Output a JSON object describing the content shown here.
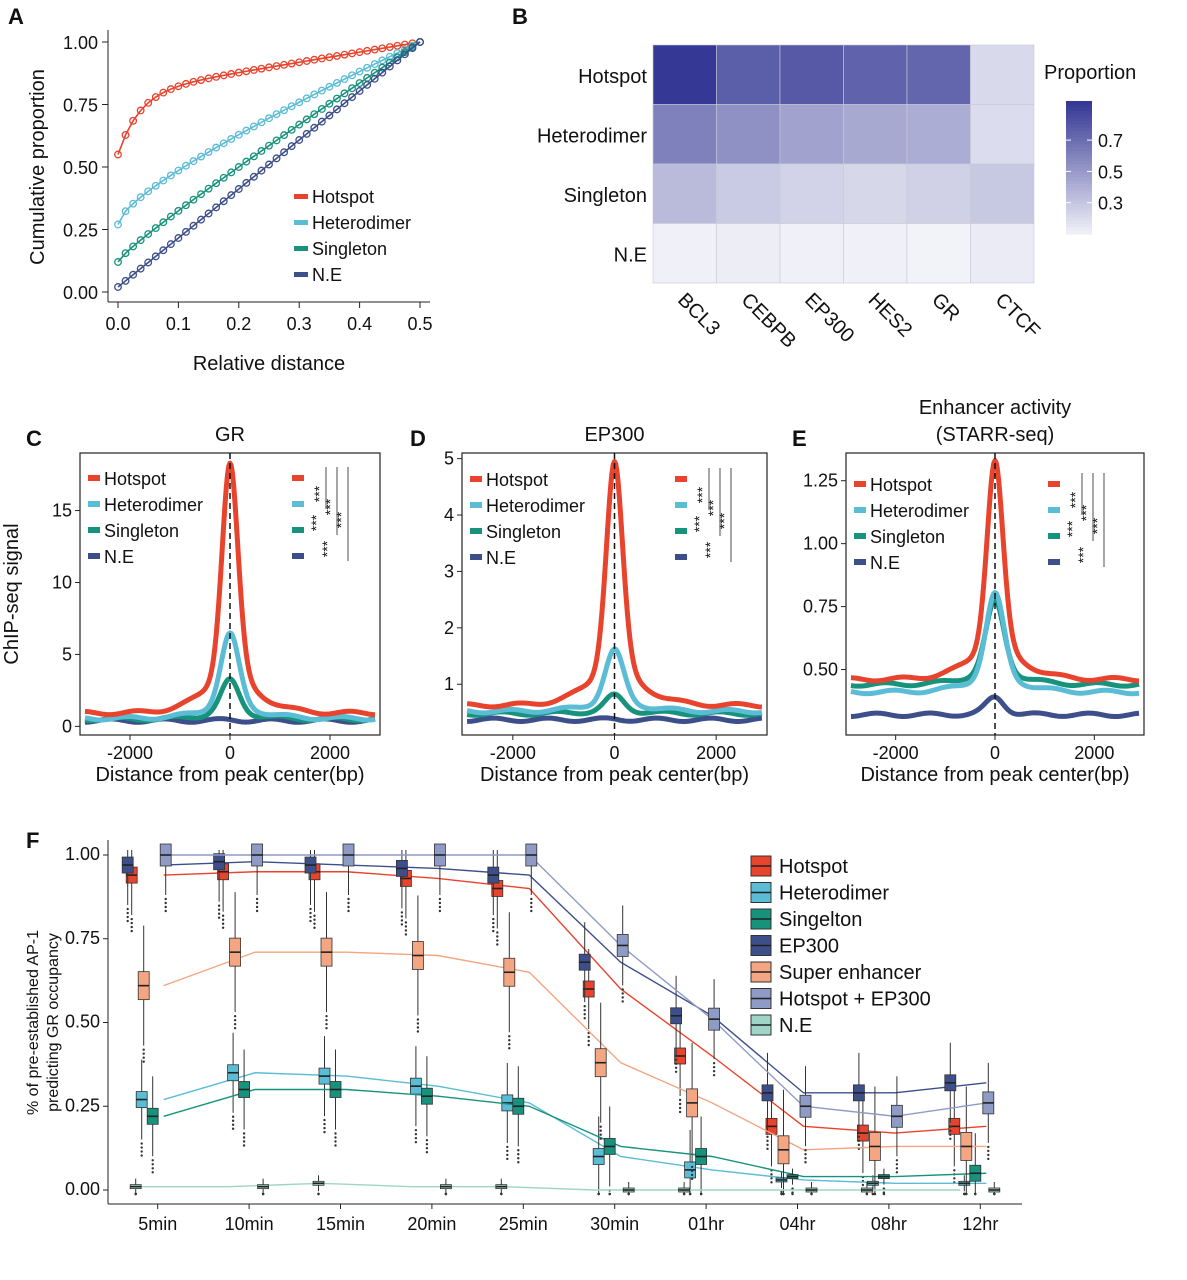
{
  "panel_letters": [
    "A",
    "B",
    "C",
    "D",
    "E",
    "F"
  ],
  "chart_data": [
    {
      "id": "A",
      "type": "line",
      "xlabel": "Relative distance",
      "ylabel": "Cumulative proportion",
      "xlim": [
        0,
        0.5
      ],
      "ylim": [
        0,
        1
      ],
      "xticks": [
        "0.0",
        "0.1",
        "0.2",
        "0.3",
        "0.4",
        "0.5"
      ],
      "yticks": [
        "0.00",
        "0.25",
        "0.50",
        "0.75",
        "1.00"
      ],
      "legend_position": "bottom-right",
      "series": [
        {
          "name": "Hotspot",
          "color": "#e8432d",
          "start": 0.55,
          "shape": "concave"
        },
        {
          "name": "Heterodimer",
          "color": "#5bbcd6",
          "start": 0.27,
          "shape": "mild"
        },
        {
          "name": "Singleton",
          "color": "#17927c",
          "start": 0.12,
          "shape": "near-linear"
        },
        {
          "name": "N.E",
          "color": "#3c4f8a",
          "start": 0.02,
          "shape": "linear"
        }
      ]
    },
    {
      "id": "B",
      "type": "heatmap",
      "rows": [
        "Hotspot",
        "Heterodimer",
        "Singleton",
        "N.E"
      ],
      "cols": [
        "BCL3",
        "CEBPB",
        "EP300",
        "HES2",
        "GR",
        "CTCF"
      ],
      "values": [
        [
          0.95,
          0.78,
          0.8,
          0.76,
          0.74,
          0.22
        ],
        [
          0.62,
          0.55,
          0.47,
          0.44,
          0.42,
          0.21
        ],
        [
          0.36,
          0.29,
          0.25,
          0.23,
          0.26,
          0.3
        ],
        [
          0.12,
          0.13,
          0.12,
          0.12,
          0.11,
          0.14
        ]
      ],
      "legend_title": "Proportion",
      "legend_ticks": [
        "0.7",
        "0.5",
        "0.3"
      ],
      "legend_tick_values": [
        0.7,
        0.5,
        0.3
      ],
      "color_range": [
        0.1,
        0.95
      ],
      "color_low": "#f4f4fa",
      "color_high": "#353894"
    },
    {
      "id": "C",
      "type": "line",
      "title": "GR",
      "xlabel": "Distance from peak center(bp)",
      "ylabel": "ChIP-seq signal",
      "xlim": [
        -3000,
        3000
      ],
      "ylim": [
        -0.6,
        19
      ],
      "xticks": [
        "-2000",
        "0",
        "2000"
      ],
      "yticks": [
        "0",
        "5",
        "10",
        "15"
      ],
      "ytick_values": [
        0,
        5,
        10,
        15
      ],
      "legend_position": "top-left",
      "significance": "***",
      "series": [
        {
          "name": "Hotspot",
          "color": "#e8432d",
          "baseline": 0.9,
          "peak": 18.3
        },
        {
          "name": "Heterodimer",
          "color": "#5bbcd6",
          "baseline": 0.55,
          "peak": 6.4
        },
        {
          "name": "Singleton",
          "color": "#17927c",
          "baseline": 0.5,
          "peak": 3.2
        },
        {
          "name": "N.E",
          "color": "#3c4f8a",
          "baseline": 0.4,
          "peak": 0.45
        }
      ]
    },
    {
      "id": "D",
      "type": "line",
      "title": "EP300",
      "xlabel": "Distance from peak center(bp)",
      "xlim": [
        -3000,
        3000
      ],
      "ylim": [
        0.1,
        5.1
      ],
      "xticks": [
        "-2000",
        "0",
        "2000"
      ],
      "yticks": [
        "1",
        "2",
        "3",
        "4",
        "5"
      ],
      "ytick_values": [
        1,
        2,
        3,
        4,
        5
      ],
      "legend_position": "top-left",
      "significance": "***",
      "series": [
        {
          "name": "Hotspot",
          "color": "#e8432d",
          "baseline": 0.62,
          "peak": 4.95
        },
        {
          "name": "Heterodimer",
          "color": "#5bbcd6",
          "baseline": 0.52,
          "peak": 1.6
        },
        {
          "name": "Singleton",
          "color": "#17927c",
          "baseline": 0.48,
          "peak": 0.8
        },
        {
          "name": "N.E",
          "color": "#3c4f8a",
          "baseline": 0.37,
          "peak": 0.38
        }
      ]
    },
    {
      "id": "E",
      "type": "line",
      "title": "Enhancer activity\n(STARR-seq)",
      "xlabel": "Distance from peak center(bp)",
      "xlim": [
        -3000,
        3000
      ],
      "ylim": [
        0.24,
        1.36
      ],
      "xticks": [
        "-2000",
        "0",
        "2000"
      ],
      "yticks": [
        "0.50",
        "0.75",
        "1.00",
        "1.25"
      ],
      "ytick_values": [
        0.5,
        0.75,
        1.0,
        1.25
      ],
      "legend_position": "top-left",
      "significance": "***",
      "series": [
        {
          "name": "Hotspot",
          "color": "#e8432d",
          "baseline": 0.46,
          "peak": 1.33
        },
        {
          "name": "Heterodimer",
          "color": "#5bbcd6",
          "baseline": 0.41,
          "peak": 0.8
        },
        {
          "name": "Singleton",
          "color": "#17927c",
          "baseline": 0.44,
          "peak": 0.77
        },
        {
          "name": "N.E",
          "color": "#3c4f8a",
          "baseline": 0.32,
          "peak": 0.39
        }
      ]
    },
    {
      "id": "F",
      "type": "box",
      "ylabel": "% of pre-established AP-1\npredicting GR occupancy",
      "categories": [
        "5min",
        "10min",
        "15min",
        "20min",
        "25min",
        "30min",
        "01hr",
        "04hr",
        "08hr",
        "12hr"
      ],
      "ylim": [
        0,
        1
      ],
      "yticks": [
        "0.00",
        "0.25",
        "0.50",
        "0.75",
        "1.00"
      ],
      "ytick_values": [
        0,
        0.25,
        0.5,
        0.75,
        1.0
      ],
      "legend_position": "right",
      "series": [
        {
          "name": "Hotspot",
          "color": "#e8432d",
          "medians": [
            0.94,
            0.95,
            0.95,
            0.93,
            0.9,
            0.6,
            0.4,
            0.19,
            0.17,
            0.19
          ]
        },
        {
          "name": "Heterodimer",
          "color": "#5bbcd6",
          "medians": [
            0.27,
            0.35,
            0.34,
            0.31,
            0.26,
            0.1,
            0.06,
            0.03,
            0.02,
            0.02
          ]
        },
        {
          "name": "Singelton",
          "color": "#17927c",
          "medians": [
            0.22,
            0.3,
            0.3,
            0.28,
            0.25,
            0.13,
            0.1,
            0.04,
            0.04,
            0.05
          ]
        },
        {
          "name": "EP300",
          "color": "#3c4f8a",
          "medians": [
            0.97,
            0.98,
            0.97,
            0.96,
            0.94,
            0.68,
            0.52,
            0.29,
            0.29,
            0.32
          ]
        },
        {
          "name": "Super enhancer",
          "color": "#f4a582",
          "medians": [
            0.61,
            0.71,
            0.71,
            0.7,
            0.65,
            0.38,
            0.26,
            0.12,
            0.13,
            0.13
          ]
        },
        {
          "name": "Hotspot + EP300",
          "color": "#8e9bc4",
          "medians": [
            1.0,
            1.0,
            1.0,
            1.0,
            1.0,
            0.73,
            0.51,
            0.25,
            0.22,
            0.26
          ]
        },
        {
          "name": "N.E",
          "color": "#9fd5c7",
          "medians": [
            0.01,
            0.01,
            0.02,
            0.01,
            0.01,
            0.0,
            0.0,
            0.0,
            0.0,
            0.0
          ]
        }
      ]
    }
  ]
}
